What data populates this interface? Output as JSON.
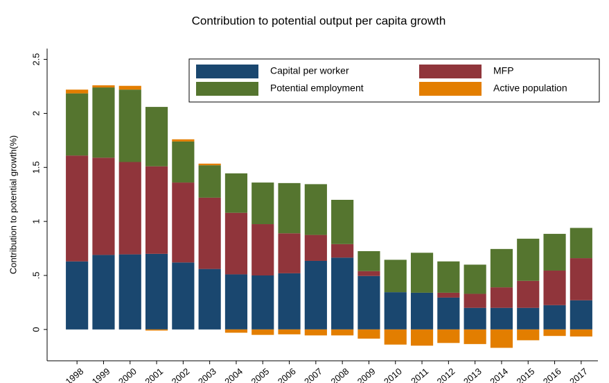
{
  "chart_data": {
    "type": "bar",
    "stacked": true,
    "title": "Contribution to potential output per capita growth",
    "ylabel": "Contribution to potential growth(%)",
    "categories": [
      "1998",
      "1999",
      "2000",
      "2001",
      "2002",
      "2003",
      "2004",
      "2005",
      "2006",
      "2007",
      "2008",
      "2009",
      "2010",
      "2011",
      "2012",
      "2013",
      "2014",
      "2015",
      "2016",
      "2017"
    ],
    "series": [
      {
        "name": "Capital per worker",
        "color": "#1a476f",
        "values": [
          0.63,
          0.69,
          0.695,
          0.7,
          0.62,
          0.56,
          0.51,
          0.5,
          0.52,
          0.635,
          0.665,
          0.495,
          0.345,
          0.34,
          0.295,
          0.2,
          0.2,
          0.2,
          0.225,
          0.27
        ]
      },
      {
        "name": "MFP",
        "color": "#90353b",
        "values": [
          0.98,
          0.9,
          0.855,
          0.81,
          0.74,
          0.66,
          0.57,
          0.475,
          0.37,
          0.24,
          0.125,
          0.045,
          0,
          0,
          0.045,
          0.13,
          0.19,
          0.25,
          0.32,
          0.39
        ]
      },
      {
        "name": "Potential employment",
        "color": "#55752f",
        "values": [
          0.575,
          0.65,
          0.67,
          0.55,
          0.38,
          0.3,
          0.365,
          0.385,
          0.465,
          0.47,
          0.41,
          0.185,
          0.3,
          0.37,
          0.29,
          0.27,
          0.355,
          0.39,
          0.34,
          0.28
        ]
      },
      {
        "name": "Active population",
        "color": "#e37e00",
        "values": [
          0.035,
          0.02,
          0.035,
          -0.01,
          0.02,
          0.015,
          -0.03,
          -0.05,
          -0.045,
          -0.055,
          -0.055,
          -0.085,
          -0.14,
          -0.15,
          -0.125,
          -0.135,
          -0.17,
          -0.1,
          -0.06,
          -0.065
        ]
      }
    ],
    "ylim": [
      -0.29,
      2.6
    ],
    "yticks": [
      0,
      {
        "value": 0.5,
        "label": ".5"
      },
      1,
      1.5,
      2,
      2.5
    ],
    "grid": false,
    "legend": "top right"
  }
}
